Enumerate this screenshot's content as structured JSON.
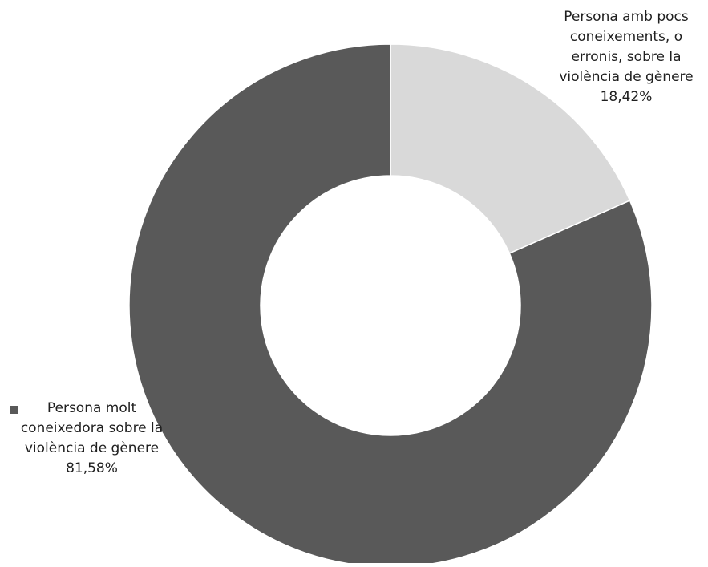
{
  "chart_data": {
    "type": "pie",
    "variant": "donut",
    "title": "",
    "slices": [
      {
        "label": "Persona amb pocs coneixements, o erronis, sobre la violència de gènere",
        "value": 18.42,
        "value_label": "18,42%",
        "color": "#d9d9d9"
      },
      {
        "label": "Persona molt coneixedora sobre la violència de gènere",
        "value": 81.58,
        "value_label": "81,58%",
        "color": "#595959"
      }
    ],
    "start_angle": "12 o'clock",
    "direction": "clockwise",
    "legend": {
      "position": "left",
      "marker_color": "#595959"
    }
  }
}
